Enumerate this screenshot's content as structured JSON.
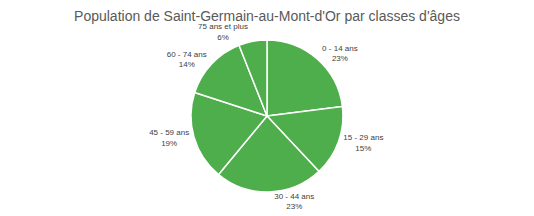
{
  "chart_data": {
    "type": "pie",
    "title": "Population de Saint-Germain-au-Mont-d'Or par classes d'âges",
    "categories": [
      "0 - 14 ans",
      "15 - 29 ans",
      "30 - 44 ans",
      "45 - 59 ans",
      "60 - 74 ans",
      "75 ans et plus"
    ],
    "values": [
      23,
      15,
      23,
      19,
      14,
      6
    ],
    "value_labels": [
      "23%",
      "15%",
      "23%",
      "19%",
      "14%",
      "6%"
    ],
    "colors": [
      "#4eae4b",
      "#4eae4b",
      "#4eae4b",
      "#4eae4b",
      "#4eae4b",
      "#4eae4b"
    ],
    "data_labels": true
  }
}
